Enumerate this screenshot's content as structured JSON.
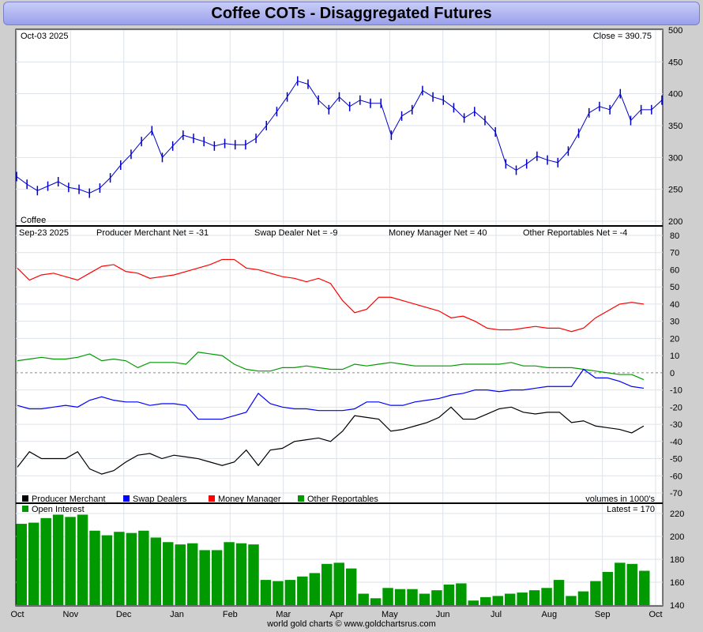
{
  "title": "Coffee COTs - Disaggregated Futures",
  "credit": "world gold charts © www.goldchartsrus.com",
  "colors": {
    "price": "#0000cc",
    "producer": "#000000",
    "swap": "#0000ff",
    "money": "#ff0000",
    "other": "#009900",
    "oi": "#009900"
  },
  "chart_data": [
    {
      "type": "line",
      "panel": "price",
      "date_label": "Oct-03  2025",
      "close_label": "Close = 390.75",
      "series_label": "Coffee",
      "ylim": [
        200,
        500
      ],
      "yticks": [
        200,
        250,
        300,
        350,
        400,
        450,
        500
      ],
      "series": [
        {
          "name": "Coffee",
          "values": [
            270,
            258,
            248,
            255,
            262,
            253,
            250,
            244,
            252,
            268,
            288,
            305,
            325,
            342,
            300,
            318,
            335,
            330,
            325,
            318,
            322,
            320,
            320,
            330,
            350,
            372,
            395,
            420,
            415,
            390,
            375,
            395,
            380,
            390,
            385,
            385,
            335,
            365,
            375,
            405,
            395,
            390,
            378,
            362,
            372,
            358,
            340,
            290,
            280,
            290,
            302,
            296,
            292,
            310,
            338,
            370,
            380,
            375,
            400,
            358,
            375,
            375,
            390
          ]
        }
      ]
    },
    {
      "type": "line",
      "panel": "cot",
      "date_label": "Sep-23  2025",
      "header_labels": [
        "Producer Merchant Net = -31",
        "Swap Dealer Net = -9",
        "Money Manager Net = 40",
        "Other Reportables Net = -4"
      ],
      "legend": [
        "Producer Merchant",
        "Swap Dealers",
        "Money Manager",
        "Other Reportables"
      ],
      "volume_note": "volumes in 1000's",
      "ylim": [
        -70,
        80
      ],
      "yticks": [
        80,
        70,
        60,
        50,
        40,
        30,
        20,
        10,
        0,
        -10,
        -20,
        -30,
        -40,
        -50,
        -60,
        -70
      ],
      "series": [
        {
          "name": "Money Manager",
          "values": [
            61,
            54,
            57,
            58,
            56,
            54,
            58,
            62,
            63,
            59,
            58,
            55,
            56,
            57,
            59,
            61,
            63,
            66,
            66,
            61,
            60,
            58,
            56,
            55,
            53,
            55,
            52,
            42,
            35,
            37,
            44,
            44,
            42,
            40,
            38,
            36,
            32,
            33,
            30,
            26,
            25,
            25,
            26,
            27,
            26,
            26,
            24,
            26,
            32,
            36,
            40,
            41,
            40
          ]
        },
        {
          "name": "Other Reportables",
          "values": [
            7,
            8,
            9,
            8,
            8,
            9,
            11,
            7,
            8,
            7,
            3,
            6,
            6,
            6,
            5,
            12,
            11,
            10,
            5,
            2,
            1,
            1,
            3,
            3,
            4,
            3,
            2,
            2,
            5,
            4,
            5,
            6,
            5,
            4,
            4,
            4,
            4,
            5,
            5,
            5,
            5,
            6,
            4,
            4,
            3,
            3,
            3,
            2,
            1,
            0,
            -1,
            -1,
            -4
          ]
        },
        {
          "name": "Swap Dealers",
          "values": [
            -19,
            -21,
            -21,
            -20,
            -19,
            -20,
            -16,
            -14,
            -16,
            -17,
            -17,
            -19,
            -18,
            -18,
            -19,
            -27,
            -27,
            -27,
            -25,
            -23,
            -12,
            -18,
            -20,
            -21,
            -21,
            -22,
            -22,
            -22,
            -21,
            -17,
            -17,
            -19,
            -19,
            -17,
            -16,
            -15,
            -13,
            -12,
            -10,
            -10,
            -11,
            -10,
            -10,
            -9,
            -8,
            -8,
            -8,
            2,
            -3,
            -3,
            -5,
            -8,
            -9
          ]
        },
        {
          "name": "Producer Merchant",
          "values": [
            -55,
            -46,
            -50,
            -50,
            -50,
            -46,
            -56,
            -59,
            -57,
            -52,
            -48,
            -47,
            -50,
            -48,
            -49,
            -50,
            -52,
            -54,
            -52,
            -45,
            -54,
            -45,
            -44,
            -40,
            -39,
            -38,
            -40,
            -34,
            -25,
            -26,
            -27,
            -34,
            -33,
            -31,
            -29,
            -26,
            -20,
            -27,
            -27,
            -24,
            -21,
            -20,
            -23,
            -24,
            -23,
            -23,
            -29,
            -28,
            -31,
            -32,
            -33,
            -35,
            -31
          ]
        }
      ]
    },
    {
      "type": "bar",
      "panel": "open-interest",
      "legend": [
        "Open Interest"
      ],
      "latest_label": "Latest = 170",
      "ylim": [
        140,
        220
      ],
      "yticks": [
        140,
        160,
        180,
        200,
        220
      ],
      "series": [
        {
          "name": "Open Interest",
          "values": [
            211,
            212,
            216,
            219,
            217,
            219,
            205,
            201,
            204,
            203,
            205,
            199,
            195,
            193,
            194,
            188,
            188,
            195,
            194,
            193,
            162,
            161,
            162,
            165,
            168,
            176,
            177,
            172,
            150,
            146,
            155,
            154,
            154,
            150,
            153,
            158,
            159,
            144,
            147,
            148,
            150,
            151,
            153,
            155,
            162,
            148,
            152,
            161,
            169,
            177,
            176,
            170
          ]
        }
      ]
    }
  ],
  "x_axis": {
    "labels": [
      "Oct",
      "Nov",
      "Dec",
      "Jan",
      "Feb",
      "Mar",
      "Apr",
      "May",
      "Jun",
      "Jul",
      "Aug",
      "Sep",
      "Oct"
    ]
  }
}
